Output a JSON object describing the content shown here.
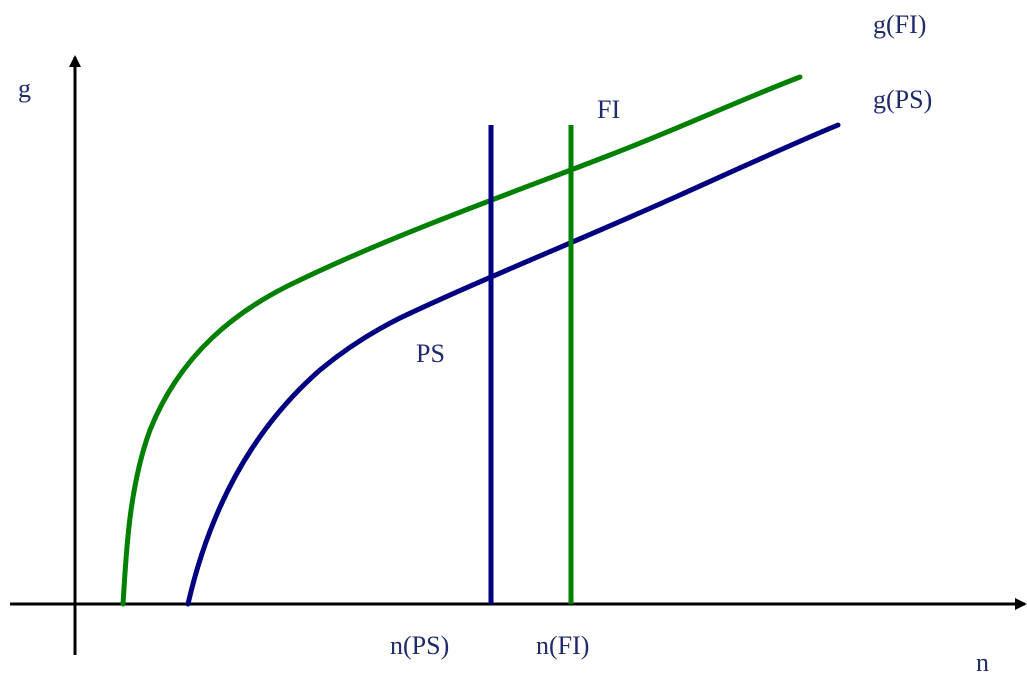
{
  "colors": {
    "axis": "#000000",
    "ps_line": "#000080",
    "fi_line": "#008000",
    "text": "#1f2a6b"
  },
  "labels": {
    "y_axis": "g",
    "x_axis": "n",
    "curve_fi": "g(FI)",
    "curve_ps": "g(PS)",
    "vline_fi": "FI",
    "curve_ps_mid": "PS",
    "tick_ps": "n(PS)",
    "tick_fi": "n(FI)"
  }
}
